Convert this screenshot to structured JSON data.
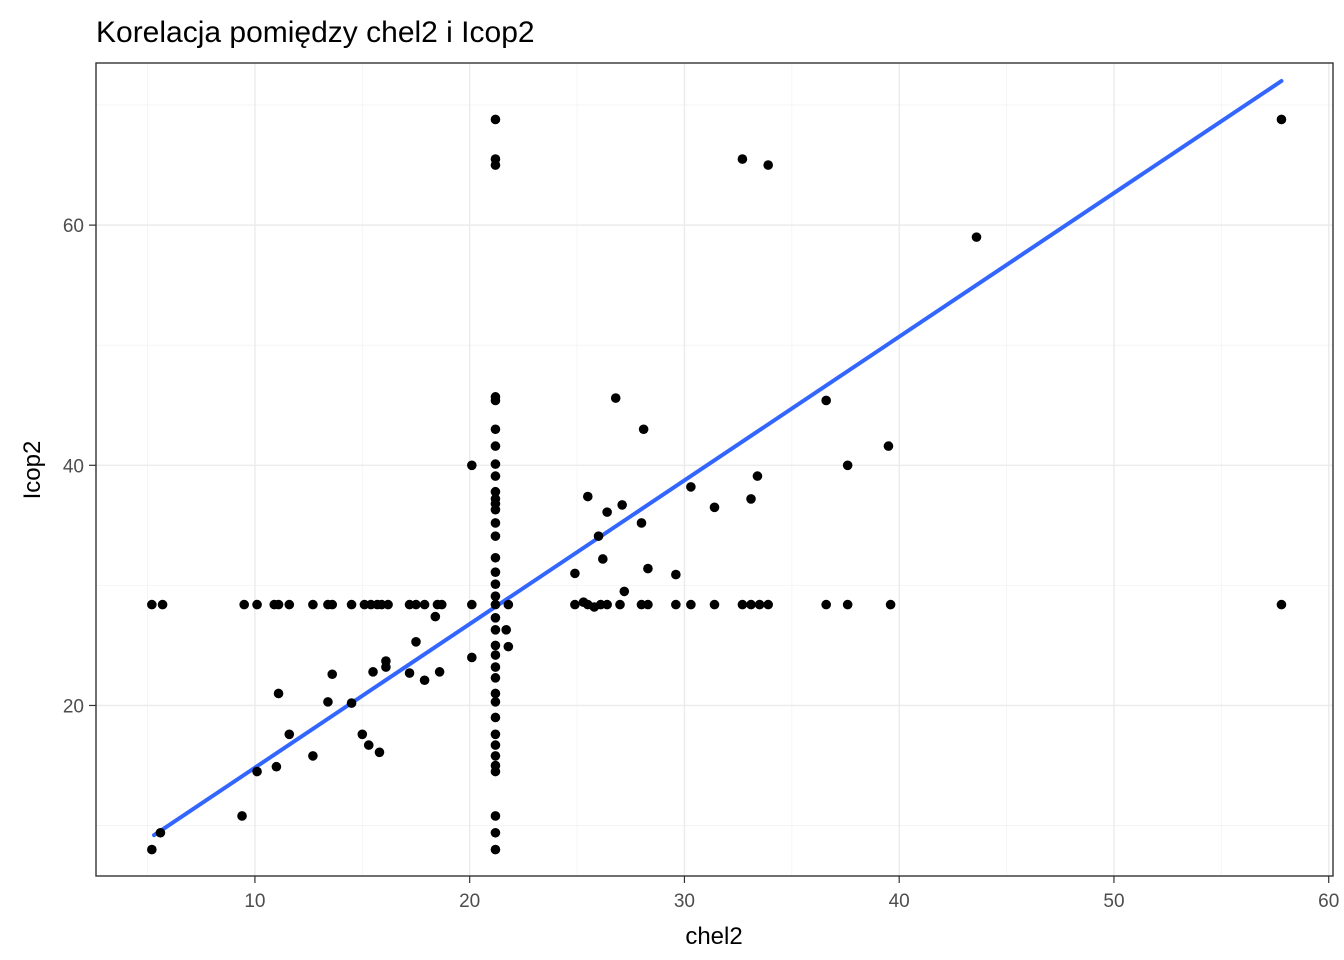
{
  "chart_data": {
    "type": "scatter",
    "title": "Korelacja pomiędzy chel2 i Icop2",
    "xlabel": "chel2",
    "ylabel": "Icop2",
    "xlim": [
      2.6,
      60.2
    ],
    "ylim": [
      5.8,
      73.5
    ],
    "x_ticks": [
      10,
      20,
      30,
      40,
      50,
      60
    ],
    "x_tick_labels": [
      "10",
      "20",
      "30",
      "40",
      "50",
      "60"
    ],
    "y_ticks": [
      20,
      40,
      60
    ],
    "y_tick_labels": [
      "20",
      "40",
      "60"
    ],
    "grid": true,
    "theme": "bw",
    "point_color": "#000000",
    "line_color": "#3366ff",
    "fit_line": {
      "method": "lm",
      "x": [
        5.3,
        57.8
      ],
      "y": [
        9.2,
        72.0
      ]
    },
    "points": [
      [
        5.2,
        28.4
      ],
      [
        5.7,
        28.4
      ],
      [
        9.5,
        28.4
      ],
      [
        10.1,
        28.4
      ],
      [
        10.9,
        28.4
      ],
      [
        11.1,
        28.4
      ],
      [
        11.6,
        28.4
      ],
      [
        12.7,
        28.4
      ],
      [
        13.4,
        28.4
      ],
      [
        13.6,
        28.4
      ],
      [
        14.5,
        28.4
      ],
      [
        15.1,
        28.4
      ],
      [
        15.4,
        28.4
      ],
      [
        15.7,
        28.4
      ],
      [
        15.9,
        28.4
      ],
      [
        16.2,
        28.4
      ],
      [
        17.2,
        28.4
      ],
      [
        17.5,
        28.4
      ],
      [
        17.9,
        28.4
      ],
      [
        18.5,
        28.4
      ],
      [
        18.7,
        28.4
      ],
      [
        20.1,
        28.4
      ],
      [
        21.2,
        28.4
      ],
      [
        21.8,
        28.4
      ],
      [
        24.9,
        28.4
      ],
      [
        25.3,
        28.6
      ],
      [
        25.5,
        28.4
      ],
      [
        25.8,
        28.2
      ],
      [
        26.1,
        28.4
      ],
      [
        26.4,
        28.4
      ],
      [
        27.0,
        28.4
      ],
      [
        28.0,
        28.4
      ],
      [
        28.3,
        28.4
      ],
      [
        29.6,
        28.4
      ],
      [
        30.3,
        28.4
      ],
      [
        31.4,
        28.4
      ],
      [
        32.7,
        28.4
      ],
      [
        33.1,
        28.4
      ],
      [
        33.5,
        28.4
      ],
      [
        33.9,
        28.4
      ],
      [
        36.6,
        28.4
      ],
      [
        37.6,
        28.4
      ],
      [
        39.6,
        28.4
      ],
      [
        57.8,
        28.4
      ],
      [
        21.2,
        68.8
      ],
      [
        21.2,
        65.5
      ],
      [
        21.2,
        65.0
      ],
      [
        21.2,
        45.7
      ],
      [
        21.2,
        45.4
      ],
      [
        21.2,
        43.0
      ],
      [
        21.2,
        41.6
      ],
      [
        21.2,
        40.1
      ],
      [
        21.2,
        39.1
      ],
      [
        21.2,
        37.8
      ],
      [
        21.2,
        37.2
      ],
      [
        21.2,
        36.8
      ],
      [
        21.2,
        36.3
      ],
      [
        21.2,
        35.2
      ],
      [
        21.2,
        34.1
      ],
      [
        21.2,
        32.3
      ],
      [
        21.2,
        31.1
      ],
      [
        21.2,
        30.1
      ],
      [
        21.2,
        29.1
      ],
      [
        21.2,
        27.3
      ],
      [
        21.2,
        26.3
      ],
      [
        21.2,
        25.0
      ],
      [
        21.2,
        24.2
      ],
      [
        21.2,
        23.2
      ],
      [
        21.2,
        22.3
      ],
      [
        21.2,
        21.0
      ],
      [
        21.2,
        20.3
      ],
      [
        21.2,
        19.0
      ],
      [
        21.2,
        17.6
      ],
      [
        21.2,
        16.7
      ],
      [
        21.2,
        15.8
      ],
      [
        21.2,
        15.0
      ],
      [
        21.2,
        14.5
      ],
      [
        21.2,
        10.8
      ],
      [
        21.2,
        9.4
      ],
      [
        21.2,
        8.0
      ],
      [
        21.7,
        26.3
      ],
      [
        21.8,
        24.9
      ],
      [
        5.2,
        8.0
      ],
      [
        5.6,
        9.4
      ],
      [
        9.4,
        10.8
      ],
      [
        10.1,
        14.5
      ],
      [
        11.0,
        14.9
      ],
      [
        11.1,
        21.0
      ],
      [
        11.6,
        17.6
      ],
      [
        12.7,
        15.8
      ],
      [
        13.4,
        20.3
      ],
      [
        13.6,
        22.6
      ],
      [
        14.5,
        20.2
      ],
      [
        15.0,
        17.6
      ],
      [
        15.3,
        16.7
      ],
      [
        15.5,
        22.8
      ],
      [
        15.8,
        16.1
      ],
      [
        16.1,
        23.7
      ],
      [
        16.1,
        23.2
      ],
      [
        17.2,
        22.7
      ],
      [
        17.5,
        25.3
      ],
      [
        17.9,
        22.1
      ],
      [
        18.4,
        27.4
      ],
      [
        18.6,
        22.8
      ],
      [
        20.1,
        40.0
      ],
      [
        20.1,
        24.0
      ],
      [
        24.9,
        31.0
      ],
      [
        25.5,
        37.4
      ],
      [
        26.0,
        34.1
      ],
      [
        26.2,
        32.2
      ],
      [
        26.4,
        36.1
      ],
      [
        26.8,
        45.6
      ],
      [
        27.1,
        36.7
      ],
      [
        27.2,
        29.5
      ],
      [
        28.0,
        35.2
      ],
      [
        28.1,
        43.0
      ],
      [
        28.3,
        31.4
      ],
      [
        29.6,
        30.9
      ],
      [
        30.3,
        38.2
      ],
      [
        31.4,
        36.5
      ],
      [
        32.7,
        65.5
      ],
      [
        33.1,
        37.2
      ],
      [
        33.4,
        39.1
      ],
      [
        33.9,
        65.0
      ],
      [
        36.6,
        45.4
      ],
      [
        37.6,
        40.0
      ],
      [
        39.5,
        41.6
      ],
      [
        43.6,
        59.0
      ],
      [
        57.8,
        68.8
      ]
    ]
  }
}
